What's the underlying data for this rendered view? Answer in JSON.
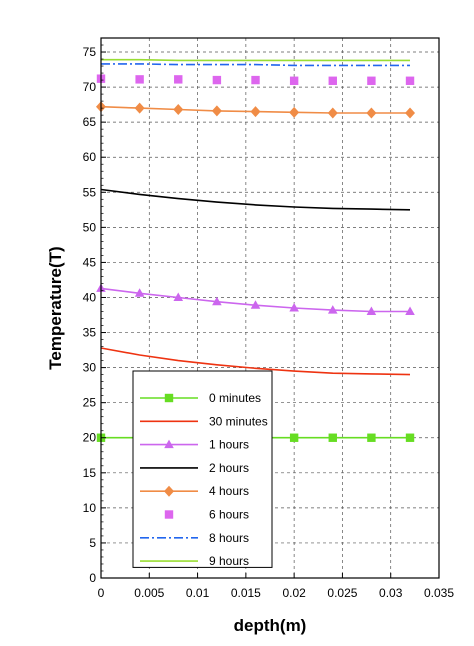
{
  "chart_data": {
    "type": "line",
    "xlabel": "depth(m)",
    "ylabel": "Temperature(T)",
    "xlim": [
      0,
      0.035
    ],
    "ylim": [
      0,
      77
    ],
    "xticks": [
      "0",
      "0.005",
      "0.01",
      "0.015",
      "0.02",
      "0.025",
      "0.03",
      "0.035"
    ],
    "yticks": [
      "0",
      "5",
      "10",
      "15",
      "20",
      "25",
      "30",
      "35",
      "40",
      "45",
      "50",
      "55",
      "60",
      "65",
      "70",
      "75"
    ],
    "grid": true,
    "legend_position": "bottom-left",
    "series": [
      {
        "name": "0 minutes",
        "color": "#66dd22",
        "line": "solid",
        "marker": "square",
        "x": [
          0,
          0.004,
          0.008,
          0.012,
          0.016,
          0.02,
          0.024,
          0.028,
          0.032
        ],
        "y": [
          20,
          20,
          20,
          20,
          20,
          20,
          20,
          20,
          20
        ]
      },
      {
        "name": "30 minutes",
        "color": "#ee3311",
        "line": "solid",
        "marker": "none",
        "x": [
          0,
          0.004,
          0.008,
          0.012,
          0.016,
          0.02,
          0.024,
          0.028,
          0.032
        ],
        "y": [
          32.8,
          31.8,
          31.0,
          30.4,
          29.9,
          29.5,
          29.2,
          29.1,
          29.0
        ]
      },
      {
        "name": "1 hours",
        "color": "#cc66ee",
        "line": "solid",
        "marker": "triangle",
        "x": [
          0,
          0.004,
          0.008,
          0.012,
          0.016,
          0.02,
          0.024,
          0.028,
          0.032
        ],
        "y": [
          41.3,
          40.6,
          40.0,
          39.4,
          38.9,
          38.5,
          38.2,
          38.0,
          38.0
        ]
      },
      {
        "name": "2 hours",
        "color": "#000000",
        "line": "solid",
        "marker": "none",
        "x": [
          0,
          0.004,
          0.008,
          0.012,
          0.016,
          0.02,
          0.024,
          0.028,
          0.032
        ],
        "y": [
          55.4,
          54.7,
          54.1,
          53.6,
          53.2,
          52.9,
          52.7,
          52.6,
          52.5
        ]
      },
      {
        "name": "4 hours",
        "color": "#f08c46",
        "line": "solid",
        "marker": "diamond",
        "x": [
          0,
          0.004,
          0.008,
          0.012,
          0.016,
          0.02,
          0.024,
          0.028,
          0.032
        ],
        "y": [
          67.2,
          67.0,
          66.8,
          66.6,
          66.5,
          66.4,
          66.3,
          66.3,
          66.3
        ]
      },
      {
        "name": "6 hours",
        "color": "#dd66ee",
        "line": "none",
        "marker": "square",
        "x": [
          0,
          0.004,
          0.008,
          0.012,
          0.016,
          0.02,
          0.024,
          0.028,
          0.032
        ],
        "y": [
          71.2,
          71.1,
          71.1,
          71.0,
          71.0,
          70.9,
          70.9,
          70.9,
          70.9
        ]
      },
      {
        "name": " 8 hours",
        "color": "#2266ee",
        "line": "dashdot",
        "marker": "none",
        "x": [
          0,
          0.004,
          0.008,
          0.012,
          0.016,
          0.02,
          0.024,
          0.028,
          0.032
        ],
        "y": [
          73.3,
          73.3,
          73.2,
          73.2,
          73.2,
          73.1,
          73.1,
          73.1,
          73.1
        ]
      },
      {
        "name": "9 hours",
        "color": "#99dd33",
        "line": "solid",
        "marker": "none",
        "x": [
          0,
          0.004,
          0.008,
          0.012,
          0.016,
          0.02,
          0.024,
          0.028,
          0.032
        ],
        "y": [
          73.9,
          73.9,
          73.8,
          73.8,
          73.8,
          73.8,
          73.8,
          73.8,
          73.8
        ]
      }
    ]
  }
}
